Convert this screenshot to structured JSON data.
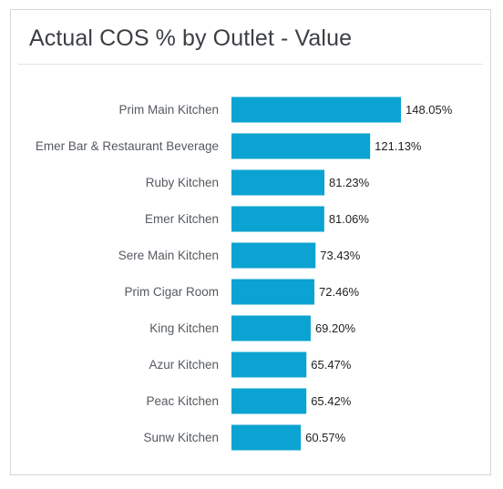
{
  "panel": {
    "title": "Actual COS % by Outlet - Value"
  },
  "chart_data": {
    "type": "bar",
    "orientation": "horizontal",
    "title": "Actual COS % by Outlet - Value",
    "categories": [
      "Prim Main Kitchen",
      "Emer Bar & Restaurant Beverage",
      "Ruby Kitchen",
      "Emer Kitchen",
      "Sere Main Kitchen",
      "Prim Cigar Room",
      "King Kitchen",
      "Azur Kitchen",
      "Peac Kitchen",
      "Sunw Kitchen"
    ],
    "values": [
      148.05,
      121.13,
      81.23,
      81.06,
      73.43,
      72.46,
      69.2,
      65.47,
      65.42,
      60.57
    ],
    "value_labels": [
      "148.05%",
      "121.13%",
      "81.23%",
      "81.06%",
      "73.43%",
      "72.46%",
      "69.20%",
      "65.47%",
      "65.42%",
      "60.57%"
    ],
    "unit": "%",
    "xlim": [
      0,
      148.05
    ],
    "grid": false,
    "legend": "none",
    "bar_color": "#0ba3d1"
  }
}
